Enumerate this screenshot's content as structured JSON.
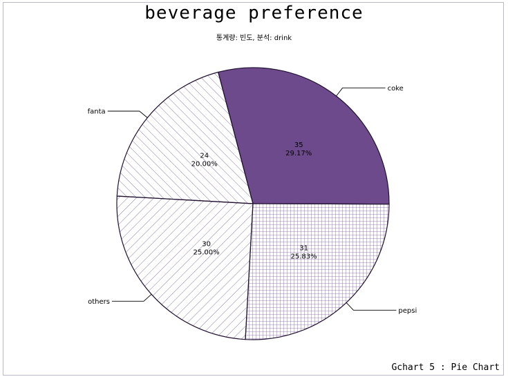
{
  "chart_data": {
    "type": "pie",
    "title": "beverage preference",
    "subtitle": "통계량: 빈도, 분석: drink",
    "footer": "Gchart 5 : Pie Chart",
    "slices": [
      {
        "label": "coke",
        "value": 35,
        "percent": "29.17%",
        "fill": "solid",
        "color": "#6d4a8c"
      },
      {
        "label": "pepsi",
        "value": 31,
        "percent": "25.83%",
        "fill": "crosshatch",
        "color": "#7a5aa0"
      },
      {
        "label": "others",
        "value": 30,
        "percent": "25.00%",
        "fill": "hatch-right",
        "color": "#6d5a90"
      },
      {
        "label": "fanta",
        "value": 24,
        "percent": "20.00%",
        "fill": "hatch-left",
        "color": "#6d5a90"
      }
    ],
    "outline_color": "#1f1030"
  }
}
